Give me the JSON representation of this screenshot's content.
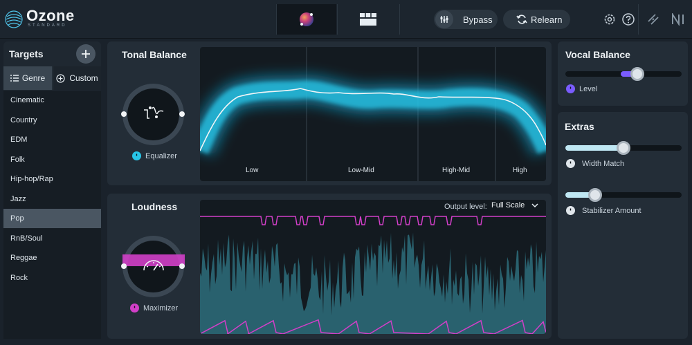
{
  "app": {
    "logo": "Ozone",
    "edition": "STANDARD"
  },
  "topbar": {
    "bypass_label": "Bypass",
    "relearn_label": "Relearn",
    "icons": [
      "assistant-orb-icon",
      "modules-grid-icon",
      "bypass-icon",
      "relearn-icon",
      "settings-icon",
      "help-icon",
      "link-icon",
      "ni-logo-icon"
    ]
  },
  "targets": {
    "title": "Targets",
    "tabs": [
      {
        "label": "Genre",
        "active": true
      },
      {
        "label": "Custom",
        "active": false
      }
    ],
    "genres": [
      "Cinematic",
      "Country",
      "EDM",
      "Folk",
      "Hip-hop/Rap",
      "Jazz",
      "Pop",
      "RnB/Soul",
      "Reggae",
      "Rock"
    ],
    "selected": "Pop"
  },
  "tonal_balance": {
    "title": "Tonal Balance",
    "knob_label": "Equalizer",
    "bands": [
      "Low",
      "Low-Mid",
      "High-Mid",
      "High"
    ]
  },
  "loudness": {
    "title": "Loudness",
    "knob_label": "Maximizer",
    "output_level_label": "Output level:",
    "output_level_value": "Full Scale"
  },
  "vocal_balance": {
    "title": "Vocal Balance",
    "level_label": "Level",
    "level_value": 0.56
  },
  "extras": {
    "title": "Extras",
    "width_match_label": "Width Match",
    "width_match_value": 0.5,
    "stabilizer_label": "Stabilizer Amount",
    "stabilizer_value": 0.26
  },
  "colors": {
    "accent_cyan": "#27c4e6",
    "accent_magenta": "#d23fc8",
    "accent_purple": "#7a5cff"
  }
}
